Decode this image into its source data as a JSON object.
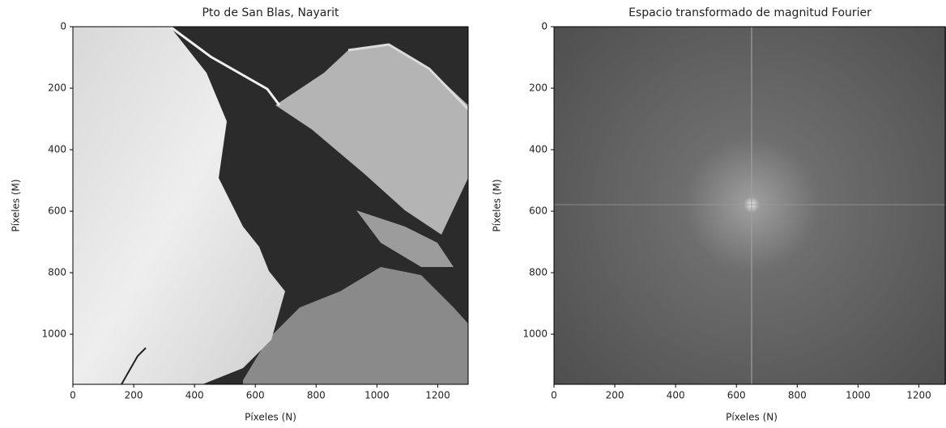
{
  "chart_data": [
    {
      "type": "image",
      "title": "Pto de San Blas, Nayarit",
      "xlabel": "Píxeles (N)",
      "ylabel": "Píxeles (M)",
      "xlim": [
        0,
        1300
      ],
      "ylim": [
        1163,
        0
      ],
      "xticks": [
        0,
        200,
        400,
        600,
        800,
        1000,
        1200
      ],
      "yticks": [
        0,
        200,
        400,
        600,
        800,
        1000
      ]
    },
    {
      "type": "image",
      "title": "Espacio transformado de magnitud Fourier",
      "xlabel": "Píxeles (N)",
      "ylabel": "Píxeles (M)",
      "xlim": [
        0,
        1300
      ],
      "ylim": [
        1163,
        0
      ],
      "xticks": [
        0,
        200,
        400,
        600,
        800,
        1000,
        1200
      ],
      "yticks": [
        0,
        200,
        400,
        600,
        800,
        1000
      ]
    }
  ]
}
